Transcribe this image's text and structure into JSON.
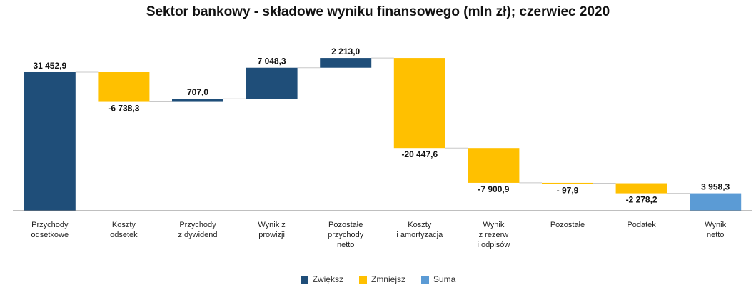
{
  "chart_data": {
    "type": "bar",
    "subtype": "waterfall",
    "title": "Sektor bankowy - składowe wyniku finansowego (mln zł); czerwiec 2020",
    "categories": [
      [
        "Przychody",
        "odsetkowe"
      ],
      [
        "Koszty",
        "odsetek"
      ],
      [
        "Przychody",
        "z dywidend"
      ],
      [
        "Wynik z",
        "prowizji"
      ],
      [
        "Pozostałe",
        "przychody",
        "netto"
      ],
      [
        "Koszty",
        "i amortyzacja"
      ],
      [
        "Wynik",
        "z rezerw",
        "i odpisów"
      ],
      [
        "Pozostałe"
      ],
      [
        "Podatek"
      ],
      [
        "Wynik",
        "netto"
      ]
    ],
    "values": [
      31452.9,
      -6738.3,
      707.0,
      7048.3,
      2213.0,
      -20447.6,
      -7900.9,
      -97.9,
      -2278.2,
      3958.3
    ],
    "value_labels": [
      "31 452,9",
      "-6 738,3",
      "707,0",
      "7 048,3",
      "2 213,0",
      "-20 447,6",
      "-7 900,9",
      "- 97,9",
      "-2 278,2",
      "3 958,3"
    ],
    "kinds": [
      "increase",
      "decrease",
      "increase",
      "increase",
      "increase",
      "decrease",
      "decrease",
      "decrease",
      "decrease",
      "total"
    ],
    "legend": [
      {
        "key": "increase",
        "label": "Zwiększ",
        "color": "#1F4E79"
      },
      {
        "key": "decrease",
        "label": "Zmniejsz",
        "color": "#FFC000"
      },
      {
        "key": "total",
        "label": "Suma",
        "color": "#5B9BD5"
      }
    ],
    "legend_position": "bottom",
    "ylim": [
      0,
      34000
    ],
    "grid": false
  }
}
